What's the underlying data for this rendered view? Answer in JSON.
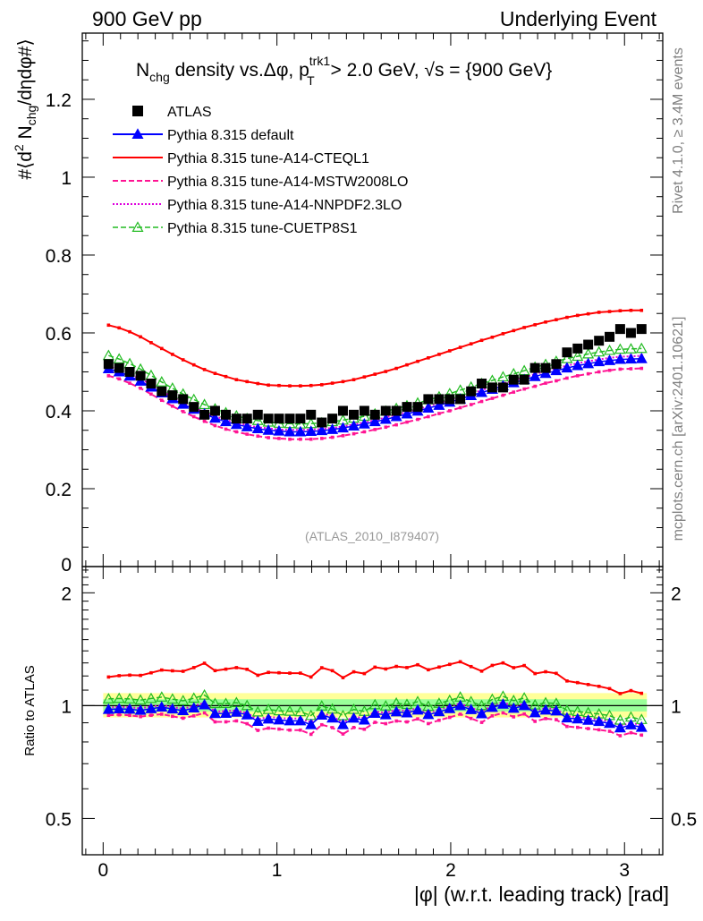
{
  "header": {
    "left": "900 GeV pp",
    "right": "Underlying Event"
  },
  "side_labels": {
    "top": "Rivet 4.1.0, ≥ 3.4M events",
    "bottom": "mcplots.cern.ch [arXiv:2401.10621]"
  },
  "chart_data": {
    "type": "scatter",
    "title_parts": {
      "prefix": "N",
      "sub1": "chg",
      "mid": " density vs.Δφ, p",
      "sup": "trk1",
      "sub2": "T",
      "suffix": " > 2.0 GeV, √s = {900 GeV}"
    },
    "ylabel_parts": {
      "a": "#⟨d",
      "sup": "2",
      "b": " N",
      "sub": "chg",
      "c": "/dηdφ#⟩"
    },
    "xlabel": "|φ| (w.r.t. leading track) [rad]",
    "ratio_ylabel": "Ratio to ATLAS",
    "analysis_tag": "(ATLAS_2010_I879407)",
    "xlim": [
      -0.12,
      3.22
    ],
    "ylim": [
      0,
      1.37
    ],
    "ratio_ylim": [
      0.4,
      2.35
    ],
    "x_ticks": [
      "0",
      "1",
      "2",
      "3"
    ],
    "y_ticks": [
      "0",
      "0.2",
      "0.4",
      "0.6",
      "0.8",
      "1",
      "1.2"
    ],
    "ratio_ticks": [
      "0.5",
      "1",
      "2"
    ],
    "x": [
      0.031,
      0.092,
      0.153,
      0.215,
      0.276,
      0.337,
      0.399,
      0.46,
      0.522,
      0.583,
      0.644,
      0.706,
      0.767,
      0.828,
      0.89,
      0.951,
      1.012,
      1.074,
      1.135,
      1.196,
      1.258,
      1.319,
      1.38,
      1.442,
      1.503,
      1.564,
      1.626,
      1.687,
      1.748,
      1.81,
      1.871,
      1.933,
      1.994,
      2.055,
      2.117,
      2.178,
      2.239,
      2.301,
      2.362,
      2.423,
      2.485,
      2.546,
      2.607,
      2.669,
      2.73,
      2.791,
      2.853,
      2.914,
      2.975,
      3.037,
      3.098
    ],
    "series": [
      {
        "name": "ATLAS",
        "color": "#000000",
        "style": "data",
        "values": [
          0.52,
          0.51,
          0.5,
          0.49,
          0.47,
          0.45,
          0.44,
          0.43,
          0.41,
          0.39,
          0.4,
          0.39,
          0.38,
          0.38,
          0.39,
          0.38,
          0.38,
          0.38,
          0.38,
          0.39,
          0.37,
          0.38,
          0.4,
          0.39,
          0.4,
          0.39,
          0.4,
          0.4,
          0.41,
          0.41,
          0.43,
          0.43,
          0.43,
          0.43,
          0.45,
          0.47,
          0.46,
          0.46,
          0.48,
          0.48,
          0.51,
          0.51,
          0.52,
          0.55,
          0.56,
          0.57,
          0.58,
          0.59,
          0.61,
          0.6,
          0.61
        ]
      },
      {
        "name": "Pythia 8.315 default",
        "color": "#0000ff",
        "style": "line-tri",
        "values": [
          0.508,
          0.5,
          0.489,
          0.476,
          0.461,
          0.446,
          0.431,
          0.417,
          0.404,
          0.392,
          0.381,
          0.372,
          0.365,
          0.359,
          0.354,
          0.35,
          0.348,
          0.346,
          0.346,
          0.347,
          0.349,
          0.352,
          0.356,
          0.361,
          0.366,
          0.372,
          0.378,
          0.385,
          0.392,
          0.399,
          0.407,
          0.414,
          0.422,
          0.43,
          0.439,
          0.447,
          0.455,
          0.464,
          0.472,
          0.48,
          0.488,
          0.496,
          0.503,
          0.51,
          0.516,
          0.521,
          0.526,
          0.529,
          0.532,
          0.533,
          0.534
        ]
      },
      {
        "name": "Pythia 8.315 tune-A14-CTEQL1",
        "color": "#ff0000",
        "style": "solid",
        "values": [
          0.62,
          0.613,
          0.603,
          0.59,
          0.575,
          0.56,
          0.545,
          0.531,
          0.518,
          0.506,
          0.496,
          0.488,
          0.48,
          0.475,
          0.47,
          0.466,
          0.465,
          0.464,
          0.464,
          0.465,
          0.467,
          0.471,
          0.475,
          0.48,
          0.487,
          0.494,
          0.501,
          0.509,
          0.518,
          0.527,
          0.536,
          0.545,
          0.554,
          0.563,
          0.572,
          0.581,
          0.589,
          0.598,
          0.606,
          0.614,
          0.621,
          0.628,
          0.634,
          0.64,
          0.645,
          0.649,
          0.653,
          0.655,
          0.657,
          0.658,
          0.658
        ]
      },
      {
        "name": "Pythia 8.315 tune-A14-MSTW2008LO",
        "color": "#ff1493",
        "style": "dashed",
        "values": [
          0.49,
          0.482,
          0.471,
          0.458,
          0.443,
          0.427,
          0.412,
          0.398,
          0.385,
          0.373,
          0.362,
          0.353,
          0.346,
          0.34,
          0.335,
          0.331,
          0.329,
          0.327,
          0.327,
          0.327,
          0.329,
          0.332,
          0.336,
          0.341,
          0.346,
          0.352,
          0.358,
          0.364,
          0.371,
          0.378,
          0.385,
          0.393,
          0.4,
          0.408,
          0.416,
          0.424,
          0.432,
          0.44,
          0.448,
          0.456,
          0.463,
          0.471,
          0.477,
          0.484,
          0.49,
          0.495,
          0.5,
          0.504,
          0.507,
          0.508,
          0.509
        ]
      },
      {
        "name": "Pythia 8.315 tune-A14-NNPDF2.3LO",
        "color": "#dd00dd",
        "style": "dotted",
        "values": [
          0.514,
          0.506,
          0.495,
          0.482,
          0.467,
          0.451,
          0.436,
          0.422,
          0.409,
          0.397,
          0.386,
          0.377,
          0.369,
          0.363,
          0.358,
          0.355,
          0.352,
          0.351,
          0.351,
          0.352,
          0.353,
          0.356,
          0.36,
          0.365,
          0.37,
          0.376,
          0.383,
          0.39,
          0.397,
          0.404,
          0.412,
          0.42,
          0.428,
          0.436,
          0.444,
          0.453,
          0.461,
          0.47,
          0.478,
          0.486,
          0.494,
          0.502,
          0.509,
          0.516,
          0.522,
          0.527,
          0.532,
          0.536,
          0.539,
          0.54,
          0.541
        ]
      },
      {
        "name": "Pythia 8.315 tune-CUETP8S1",
        "color": "#22bb22",
        "style": "dash-tri",
        "values": [
          0.542,
          0.533,
          0.521,
          0.507,
          0.491,
          0.474,
          0.458,
          0.443,
          0.429,
          0.416,
          0.405,
          0.395,
          0.387,
          0.38,
          0.375,
          0.371,
          0.368,
          0.367,
          0.366,
          0.367,
          0.369,
          0.372,
          0.376,
          0.381,
          0.386,
          0.392,
          0.399,
          0.406,
          0.413,
          0.42,
          0.428,
          0.436,
          0.444,
          0.453,
          0.461,
          0.47,
          0.478,
          0.487,
          0.495,
          0.503,
          0.512,
          0.519,
          0.527,
          0.534,
          0.54,
          0.546,
          0.551,
          0.555,
          0.558,
          0.559,
          0.56
        ]
      }
    ]
  }
}
